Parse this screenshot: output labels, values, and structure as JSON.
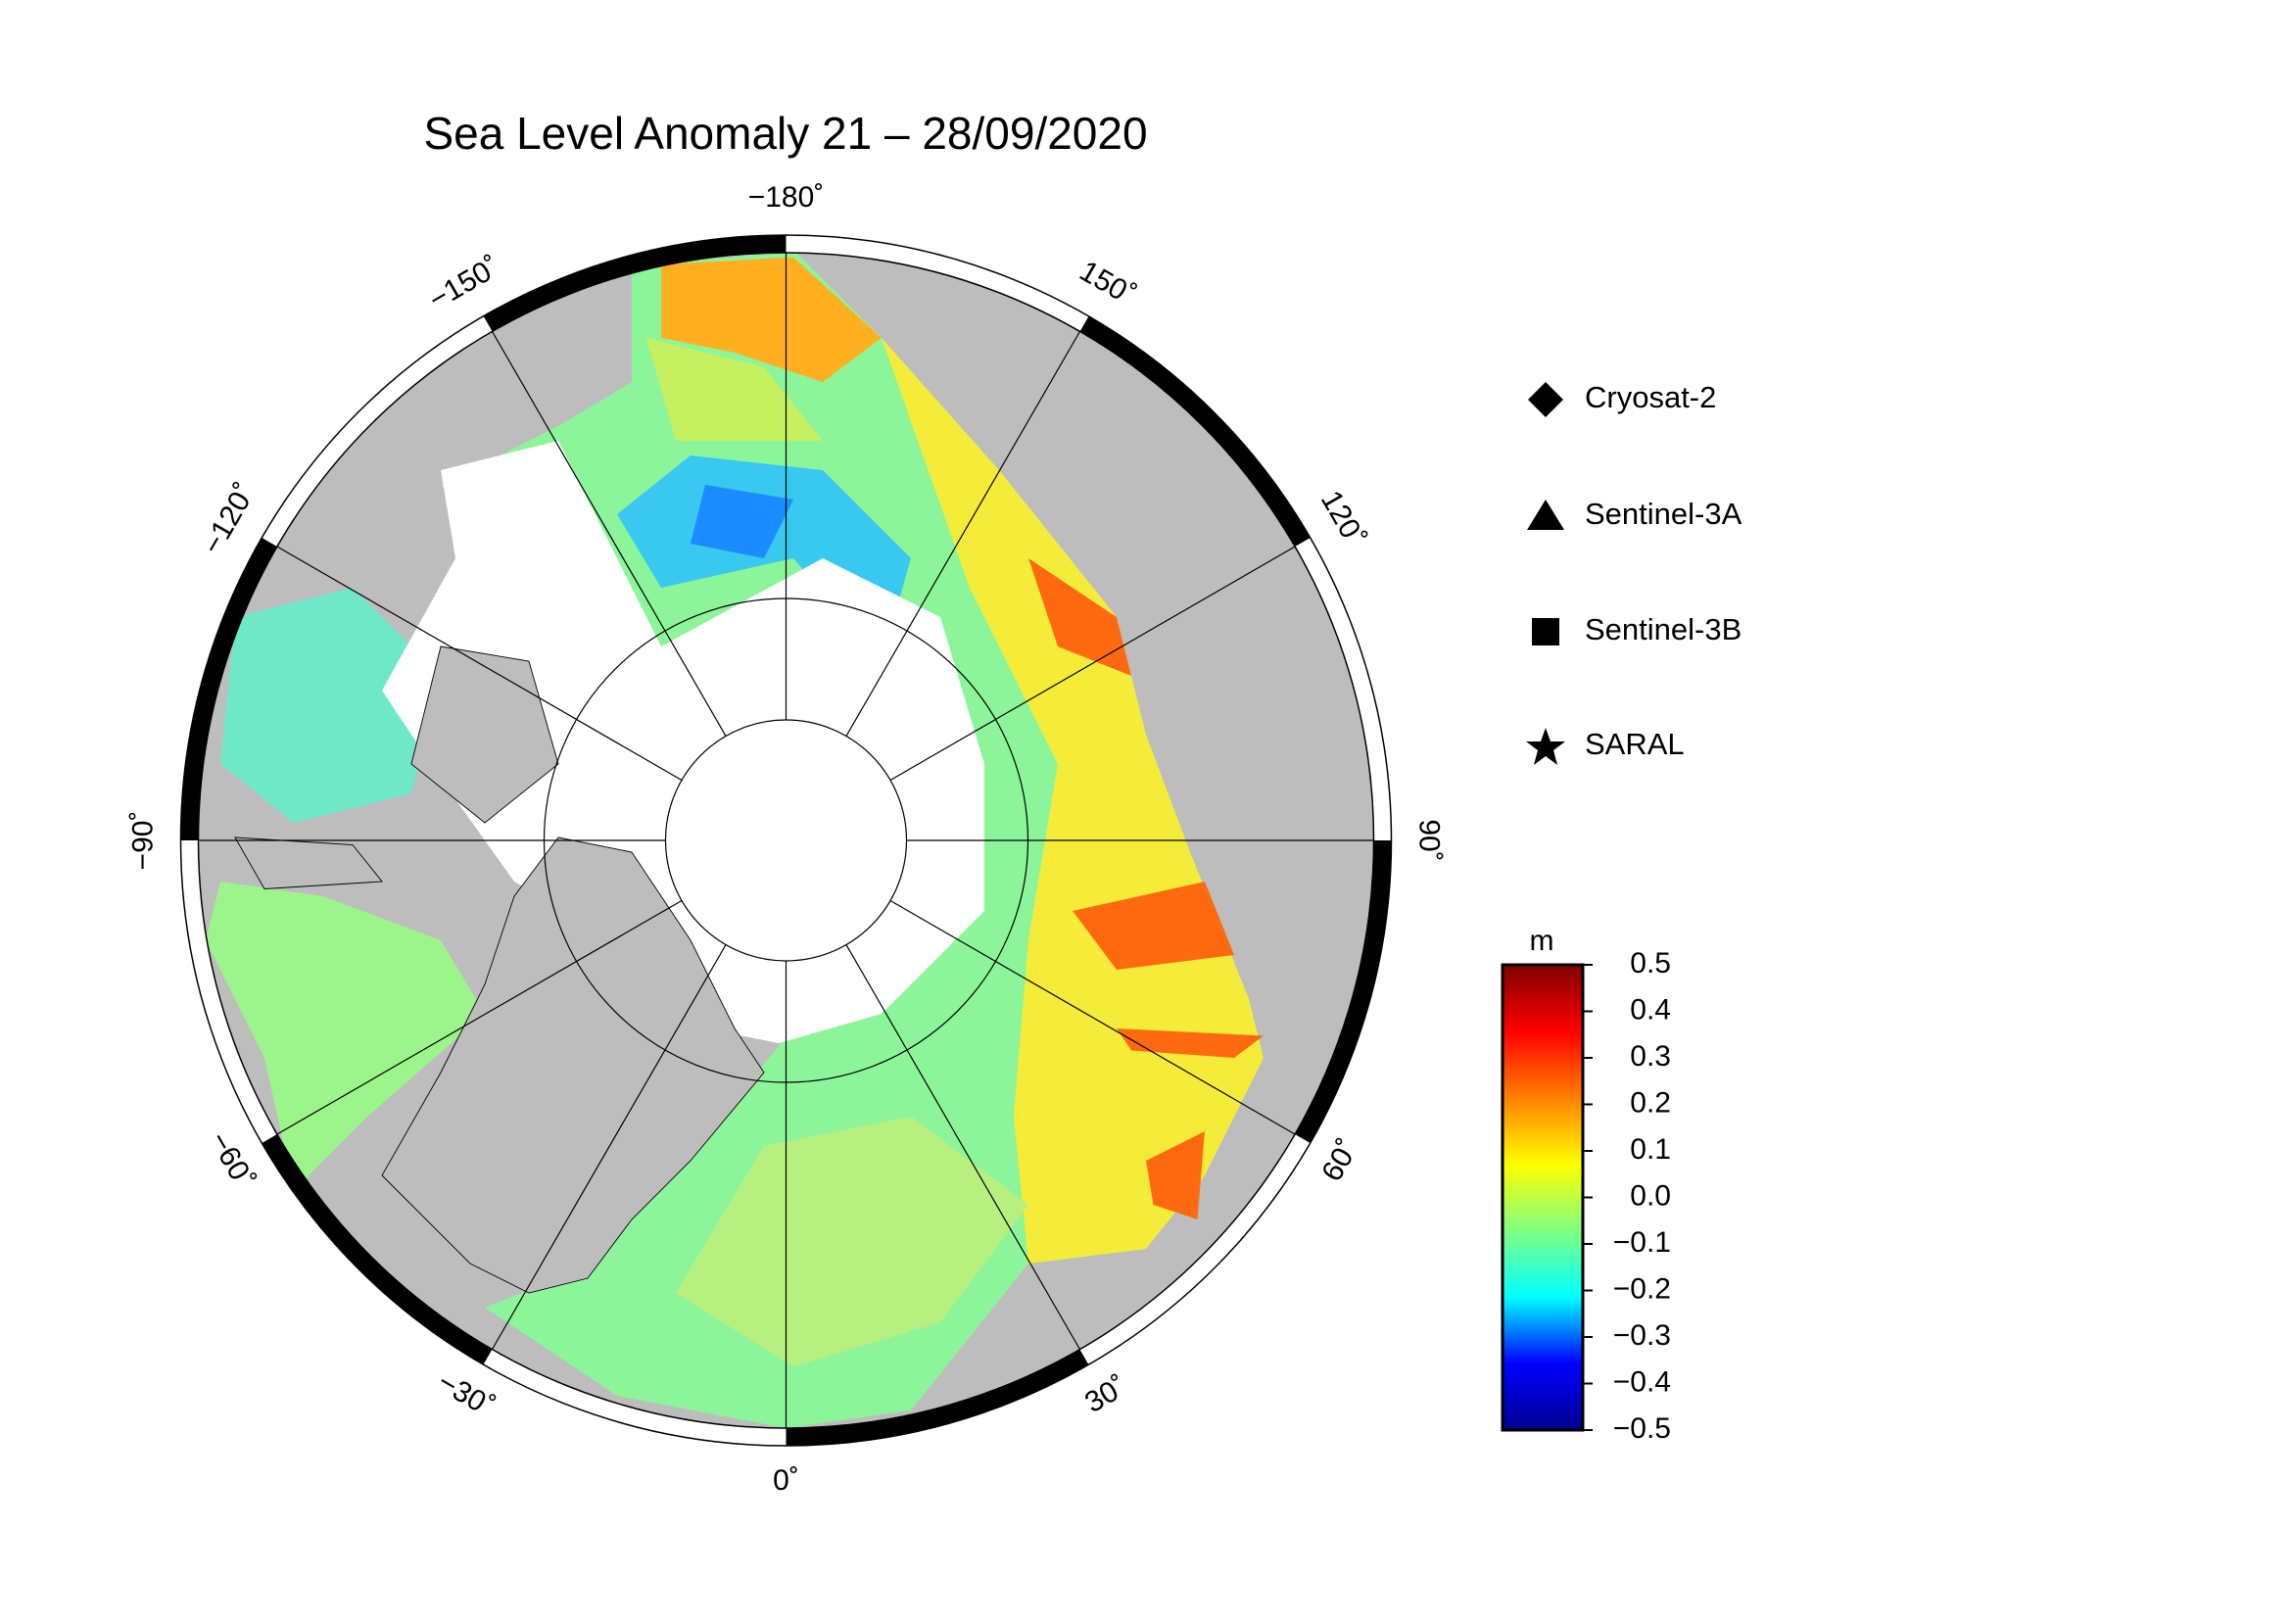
{
  "title": "Sea Level Anomaly 21 – 28/09/2020",
  "map": {
    "meridians": [
      {
        "value": -180,
        "label": "−180˚"
      },
      {
        "value": -150,
        "label": "−150˚"
      },
      {
        "value": -120,
        "label": "−120˚"
      },
      {
        "value": -90,
        "label": "−90˚"
      },
      {
        "value": -60,
        "label": "−60˚"
      },
      {
        "value": -30,
        "label": "−30˚"
      },
      {
        "value": 0,
        "label": "0˚"
      },
      {
        "value": 30,
        "label": "30˚"
      },
      {
        "value": 60,
        "label": "60˚"
      },
      {
        "value": 90,
        "label": "90˚"
      },
      {
        "value": 120,
        "label": "120˚"
      },
      {
        "value": 150,
        "label": "150˚"
      }
    ]
  },
  "legend": [
    "Cryosat-2",
    "Sentinel-3A",
    "Sentinel-3B",
    "SARAL"
  ],
  "colorbar": {
    "unit": "m",
    "clim": [
      -0.5,
      0.5
    ],
    "colors": [
      "#00008f",
      "#0000ff",
      "#00ffff",
      "#80ff80",
      "#ffff00",
      "#ff8000",
      "#ff0000",
      "#800000"
    ],
    "ticks": [
      {
        "value": 0.5,
        "label": "0.5"
      },
      {
        "value": 0.4,
        "label": "0.4"
      },
      {
        "value": 0.3,
        "label": "0.3"
      },
      {
        "value": 0.2,
        "label": "0.2"
      },
      {
        "value": 0.1,
        "label": "0.1"
      },
      {
        "value": 0,
        "label": "0.0"
      },
      {
        "value": -0.1,
        "label": "−0.1"
      },
      {
        "value": -0.2,
        "label": "−0.2"
      },
      {
        "value": -0.3,
        "label": "−0.3"
      },
      {
        "value": -0.4,
        "label": "−0.4"
      },
      {
        "value": -0.5,
        "label": "−0.5"
      }
    ]
  }
}
